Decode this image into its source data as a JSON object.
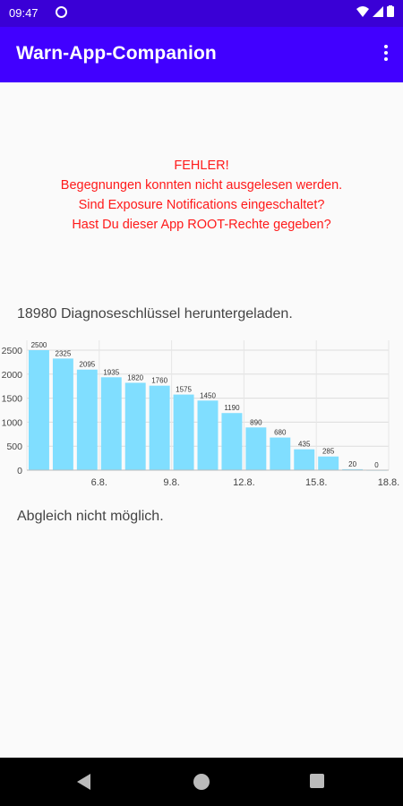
{
  "status_bar": {
    "time": "09:47"
  },
  "app_bar": {
    "title": "Warn-App-Companion"
  },
  "error": {
    "line1": "FEHLER!",
    "line2": "Begegnungen konnten nicht ausgelesen werden.",
    "line3": "Sind Exposure Notifications eingeschaltet?",
    "line4": "Hast Du dieser App ROOT-Rechte gegeben?"
  },
  "keys_downloaded": "18980 Diagnoseschlüssel heruntergeladen.",
  "match_status": "Abgleich nicht möglich.",
  "colors": {
    "accent": "#4100ff",
    "error": "#ff1a1a",
    "bar": "#80deff"
  },
  "chart_data": {
    "type": "bar",
    "values": [
      2500,
      2325,
      2095,
      1935,
      1820,
      1760,
      1575,
      1450,
      1190,
      890,
      680,
      435,
      285,
      20,
      0
    ],
    "x_tick_labels": [
      "6.8.",
      "9.8.",
      "12.8.",
      "15.8.",
      "18.8."
    ],
    "y_tick_labels": [
      "0",
      "500",
      "1000",
      "1500",
      "2000",
      "2500"
    ],
    "ylim": [
      0,
      2500
    ],
    "grid": true
  }
}
